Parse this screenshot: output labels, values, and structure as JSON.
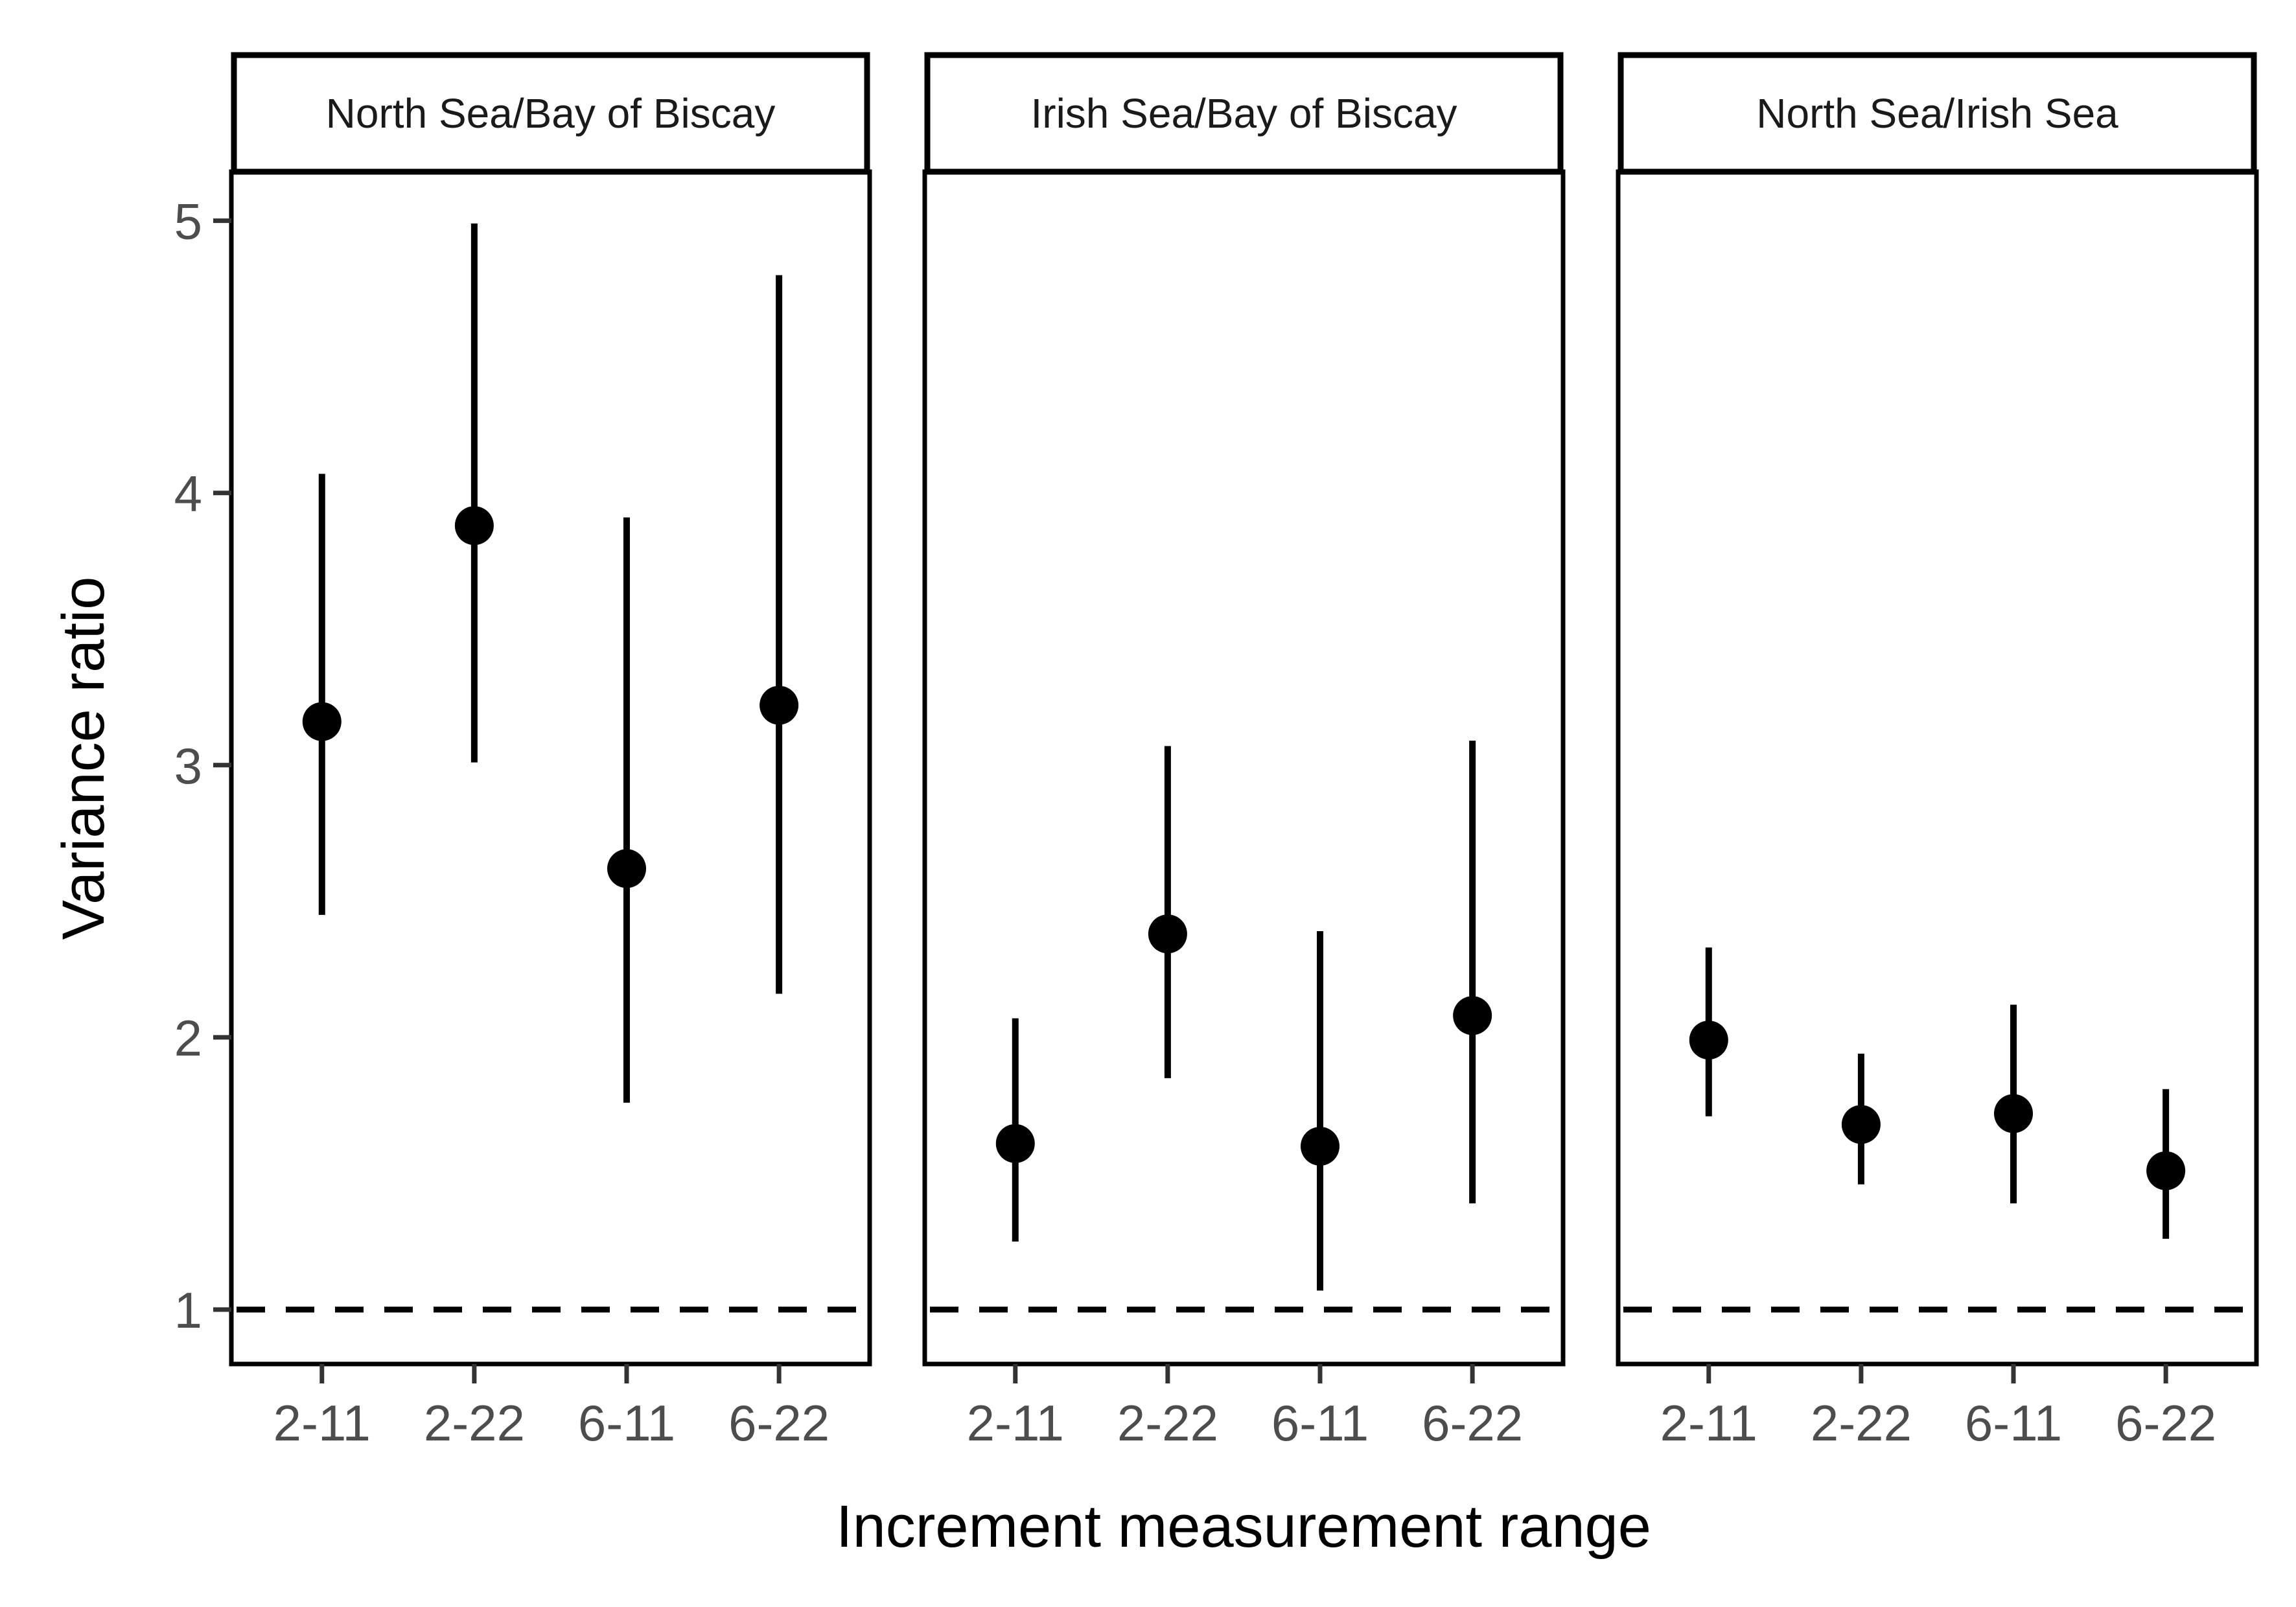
{
  "chart_data": {
    "type": "scatter",
    "subtype": "point-range with facets",
    "title": "",
    "xlabel": "Increment measurement range",
    "ylabel": "Variance ratio",
    "ylim": [
      0.8,
      5.18
    ],
    "yticks": [
      1,
      2,
      3,
      4,
      5
    ],
    "categories": [
      "2-11",
      "2-22",
      "6-11",
      "6-22"
    ],
    "reference_line": {
      "y": 1,
      "style": "dashed"
    },
    "grid": false,
    "legend": "none",
    "colors": {
      "point": "#000000",
      "reference": "#000000",
      "tick_text": "#4d4d4d"
    },
    "panels": [
      {
        "name": "North Sea/Bay of Biscay",
        "estimate": [
          3.16,
          3.88,
          2.62,
          3.22
        ],
        "lower": [
          2.45,
          3.01,
          1.76,
          2.16
        ],
        "upper": [
          4.07,
          4.99,
          3.91,
          4.8
        ]
      },
      {
        "name": "Irish Sea/Bay of Biscay",
        "estimate": [
          1.61,
          2.38,
          1.6,
          2.08
        ],
        "lower": [
          1.25,
          1.85,
          1.07,
          1.39
        ],
        "upper": [
          2.07,
          3.07,
          2.39,
          3.09
        ]
      },
      {
        "name": "North Sea/Irish Sea",
        "estimate": [
          1.99,
          1.68,
          1.72,
          1.51
        ],
        "lower": [
          1.71,
          1.46,
          1.39,
          1.26
        ],
        "upper": [
          2.33,
          1.94,
          2.12,
          1.81
        ]
      }
    ]
  }
}
